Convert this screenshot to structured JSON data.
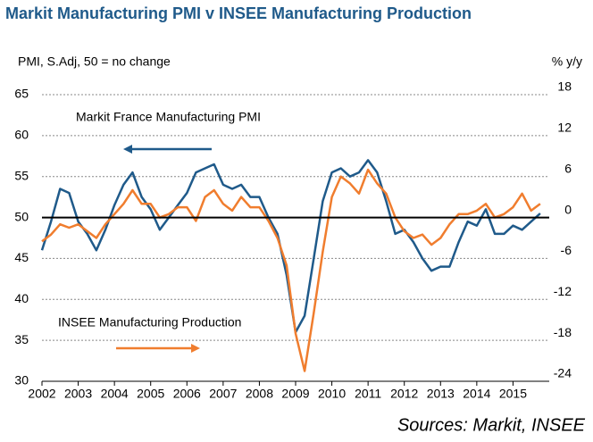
{
  "chart_data": {
    "type": "line",
    "title": "Markit Manufacturing PMI v INSEE Manufacturing Production",
    "y_label": "PMI, S.Adj, 50 = no change",
    "y2_label": "% y/y",
    "source": "Sources: Markit, INSEE",
    "x": [
      2002,
      2002.25,
      2002.5,
      2002.75,
      2003,
      2003.25,
      2003.5,
      2003.75,
      2004,
      2004.25,
      2004.5,
      2004.75,
      2005,
      2005.25,
      2005.5,
      2005.75,
      2006,
      2006.25,
      2006.5,
      2006.75,
      2007,
      2007.25,
      2007.5,
      2007.75,
      2008,
      2008.25,
      2008.5,
      2008.75,
      2009,
      2009.25,
      2009.5,
      2009.75,
      2010,
      2010.25,
      2010.5,
      2010.75,
      2011,
      2011.25,
      2011.5,
      2011.75,
      2012,
      2012.25,
      2012.5,
      2012.75,
      2013,
      2013.25,
      2013.5,
      2013.75,
      2014,
      2014.25,
      2014.5,
      2014.75,
      2015,
      2015.25,
      2015.5,
      2015.75
    ],
    "series": [
      {
        "name": "Markit France Manufacturing PMI",
        "color": "#1f5a8a",
        "axis": "y",
        "values": [
          46,
          49.5,
          53.5,
          53,
          49.5,
          48,
          46,
          48.5,
          51.5,
          54,
          55.5,
          52.5,
          51,
          48.5,
          50,
          51.5,
          53,
          55.5,
          56,
          56.5,
          54,
          53.5,
          54,
          52.5,
          52.5,
          50,
          48,
          43,
          36,
          38,
          45,
          52,
          55.5,
          56,
          55,
          55.5,
          57,
          55.5,
          52,
          48,
          48.5,
          47,
          45,
          43.5,
          44,
          44,
          47,
          49.5,
          49,
          51,
          48,
          48,
          49,
          48.5,
          49.5,
          50.5
        ]
      },
      {
        "name": "INSEE Manufacturing Production",
        "color": "#f07d2e",
        "axis": "y2",
        "values": [
          -3.5,
          -2.5,
          -1,
          -1.5,
          -1,
          -2,
          -3,
          -1,
          0.5,
          2,
          4,
          2,
          2,
          0,
          0.5,
          1.5,
          1.5,
          -0.5,
          3,
          4,
          2,
          1,
          3,
          1.5,
          1.5,
          -0.5,
          -3,
          -7,
          -17,
          -22.5,
          -14,
          -5,
          3,
          6,
          5,
          3.5,
          7,
          5,
          3.5,
          0,
          -2,
          -3,
          -2.5,
          -4,
          -3,
          -1,
          0.5,
          0.5,
          1,
          2,
          0,
          0.5,
          1.5,
          3.5,
          1,
          2
        ]
      }
    ],
    "xlim": [
      2002,
      2016
    ],
    "xticks": [
      2002,
      2003,
      2004,
      2005,
      2006,
      2007,
      2008,
      2009,
      2010,
      2011,
      2012,
      2013,
      2014,
      2015
    ],
    "ylim": [
      30,
      65
    ],
    "yticks": [
      30,
      35,
      40,
      45,
      50,
      55,
      60,
      65
    ],
    "y2lim": [
      -24,
      18
    ],
    "y2ticks": [
      -24,
      -18,
      -12,
      -6,
      0,
      6,
      12,
      18
    ],
    "reference_line": 50,
    "grid": true
  }
}
